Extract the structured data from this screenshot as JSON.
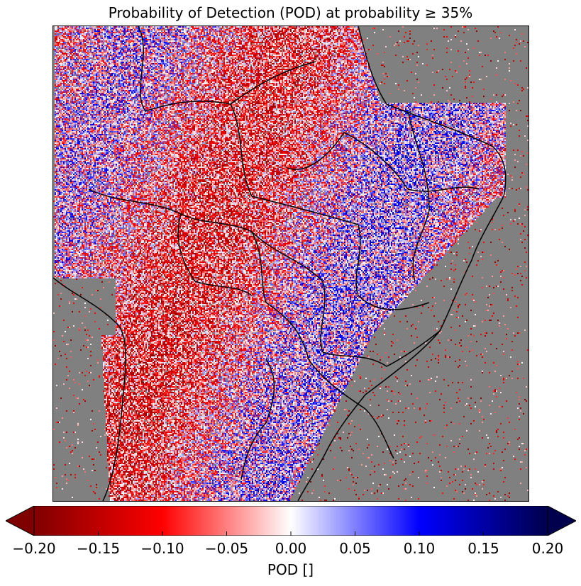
{
  "title": "Probability of Detection (POD) at probability ≥ 35%",
  "colorbar": {
    "label": "POD []",
    "min": -0.2,
    "max": 0.2,
    "extend": "both",
    "colormap": "seismic_r",
    "ticks": [
      "−0.20",
      "−0.15",
      "−0.10",
      "−0.05",
      "0.00",
      "0.05",
      "0.10",
      "0.15",
      "0.20"
    ],
    "stops": [
      "#7f0000",
      "#ff0000",
      "#ffffff",
      "#0000ff",
      "#00004c"
    ]
  },
  "map": {
    "missing_color": "#808080",
    "boundary_color": "#000000"
  }
}
